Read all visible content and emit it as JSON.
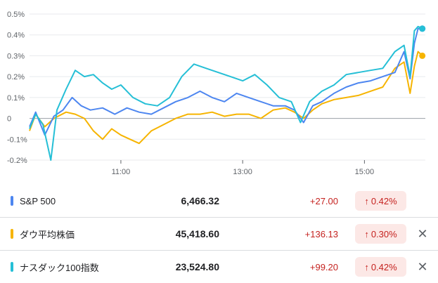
{
  "colors": {
    "sp500": "#4d86f0",
    "dow": "#f6b400",
    "nasdaq": "#25bfd6",
    "grid": "#e8eaed",
    "zero": "#9aa0a6",
    "negative": "#c5221f"
  },
  "chart_data": {
    "type": "line",
    "ylim": [
      -0.2,
      0.5
    ],
    "xlim": [
      9.5,
      16.0
    ],
    "y_ticks": [
      0.5,
      0.4,
      0.3,
      0.2,
      0.1,
      0,
      -0.1,
      -0.2
    ],
    "y_tick_labels": [
      "0.5%",
      "0.4%",
      "0.3%",
      "0.2%",
      "0.1%",
      "0",
      "-0.1%",
      "-0.2%"
    ],
    "x_ticks": [
      11,
      13,
      15
    ],
    "x_tick_labels": [
      "11:00",
      "13:00",
      "15:00"
    ],
    "grid": true,
    "series": [
      {
        "name": "ダウ平均株価",
        "color": "#f6b400",
        "x": [
          9.5,
          9.6,
          9.75,
          9.9,
          10.1,
          10.25,
          10.4,
          10.55,
          10.7,
          10.85,
          11.0,
          11.15,
          11.3,
          11.5,
          11.7,
          11.9,
          12.1,
          12.3,
          12.5,
          12.7,
          12.9,
          13.1,
          13.3,
          13.5,
          13.7,
          13.85,
          14.0,
          14.15,
          14.3,
          14.5,
          14.7,
          14.9,
          15.1,
          15.3,
          15.5,
          15.65,
          15.75,
          15.82,
          15.88,
          15.95
        ],
        "y": [
          -0.06,
          0.02,
          -0.04,
          0.0,
          0.03,
          0.02,
          0.0,
          -0.06,
          -0.1,
          -0.05,
          -0.08,
          -0.1,
          -0.12,
          -0.06,
          -0.03,
          0.0,
          0.02,
          0.02,
          0.03,
          0.01,
          0.02,
          0.02,
          0.0,
          0.04,
          0.05,
          0.03,
          0.0,
          0.04,
          0.07,
          0.09,
          0.1,
          0.11,
          0.13,
          0.15,
          0.24,
          0.27,
          0.12,
          0.25,
          0.32,
          0.3
        ]
      },
      {
        "name": "S&P 500",
        "color": "#4d86f0",
        "x": [
          9.5,
          9.6,
          9.75,
          9.9,
          10.05,
          10.2,
          10.35,
          10.5,
          10.7,
          10.9,
          11.1,
          11.3,
          11.5,
          11.7,
          11.9,
          12.1,
          12.3,
          12.5,
          12.7,
          12.9,
          13.1,
          13.3,
          13.5,
          13.7,
          13.85,
          14.0,
          14.15,
          14.3,
          14.5,
          14.7,
          14.9,
          15.1,
          15.3,
          15.5,
          15.65,
          15.75,
          15.82,
          15.88,
          15.95
        ],
        "y": [
          -0.04,
          0.03,
          -0.08,
          0.01,
          0.04,
          0.1,
          0.06,
          0.04,
          0.05,
          0.02,
          0.05,
          0.03,
          0.02,
          0.05,
          0.08,
          0.1,
          0.13,
          0.1,
          0.08,
          0.12,
          0.1,
          0.08,
          0.06,
          0.06,
          0.04,
          -0.02,
          0.06,
          0.08,
          0.12,
          0.15,
          0.17,
          0.18,
          0.2,
          0.22,
          0.32,
          0.19,
          0.36,
          0.43,
          0.43
        ]
      },
      {
        "name": "ナスダック100指数",
        "color": "#25bfd6",
        "x": [
          9.5,
          9.6,
          9.72,
          9.85,
          9.95,
          10.1,
          10.25,
          10.4,
          10.55,
          10.7,
          10.85,
          11.0,
          11.2,
          11.4,
          11.6,
          11.8,
          12.0,
          12.2,
          12.4,
          12.6,
          12.8,
          13.0,
          13.2,
          13.4,
          13.6,
          13.8,
          13.95,
          14.1,
          14.3,
          14.5,
          14.7,
          14.9,
          15.1,
          15.3,
          15.5,
          15.65,
          15.75,
          15.82,
          15.88,
          15.95
        ],
        "y": [
          -0.05,
          0.02,
          -0.03,
          -0.2,
          0.04,
          0.14,
          0.23,
          0.2,
          0.21,
          0.17,
          0.14,
          0.16,
          0.1,
          0.07,
          0.06,
          0.1,
          0.2,
          0.26,
          0.24,
          0.22,
          0.2,
          0.18,
          0.21,
          0.16,
          0.1,
          0.08,
          -0.02,
          0.08,
          0.13,
          0.16,
          0.21,
          0.22,
          0.23,
          0.24,
          0.32,
          0.35,
          0.2,
          0.42,
          0.44,
          0.43
        ]
      }
    ]
  },
  "rows": [
    {
      "name": "S&P 500",
      "price": "6,466.32",
      "change": "+27.00",
      "arrow": "↑",
      "pct": "0.42%",
      "close": ""
    },
    {
      "name": "ダウ平均株価",
      "price": "45,418.60",
      "change": "+136.13",
      "arrow": "↑",
      "pct": "0.30%",
      "close": "✕"
    },
    {
      "name": "ナスダック100指数",
      "price": "23,524.80",
      "change": "+99.20",
      "arrow": "↑",
      "pct": "0.42%",
      "close": "✕"
    }
  ]
}
